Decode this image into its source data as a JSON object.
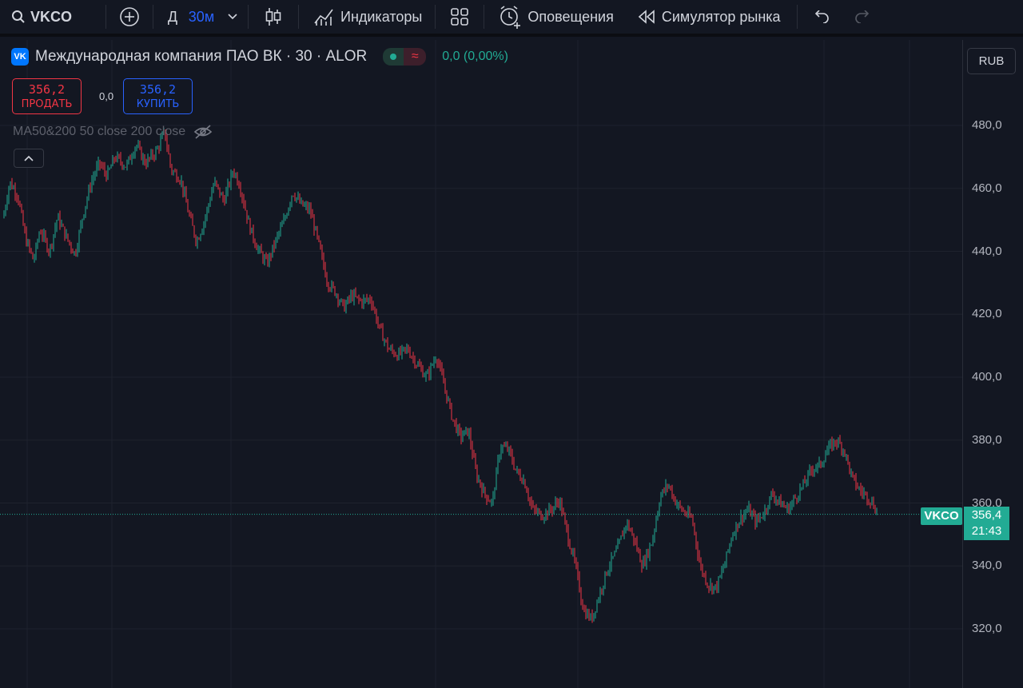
{
  "toolbar": {
    "symbol": "VKCO",
    "interval_prefix": "Д",
    "interval": "30м",
    "indicators_label": "Индикаторы",
    "alerts_label": "Оповещения",
    "replay_label": "Симулятор рынка"
  },
  "legend": {
    "title": "Международная компания ПАО ВК · 30 · ALOR",
    "logo_text": "VK",
    "change": "0,0 (0,00%)",
    "sell_price": "356,2",
    "sell_label": "ПРОДАТЬ",
    "spread": "0,0",
    "buy_price": "356,2",
    "buy_label": "КУПИТЬ",
    "ma_label": "MA50&200 50 close 200 close"
  },
  "price_axis": {
    "currency": "RUB",
    "ticks": [
      "480,0",
      "460,0",
      "440,0",
      "420,0",
      "400,0",
      "380,0",
      "360,0",
      "340,0",
      "320,0"
    ],
    "symbol_tag": "VKCO",
    "last_price": "356,4",
    "countdown": "21:43"
  },
  "colors": {
    "up": "#22ab94",
    "down": "#f23645",
    "background": "#131722",
    "accent": "#2962ff"
  },
  "chart_data": {
    "type": "candlestick",
    "ylim": [
      315,
      495
    ],
    "last": 356.4,
    "anchors": [
      [
        0,
        445
      ],
      [
        12,
        462
      ],
      [
        22,
        458
      ],
      [
        32,
        444
      ],
      [
        42,
        437
      ],
      [
        50,
        447
      ],
      [
        62,
        440
      ],
      [
        72,
        451
      ],
      [
        82,
        445
      ],
      [
        94,
        439
      ],
      [
        104,
        452
      ],
      [
        114,
        462
      ],
      [
        124,
        468
      ],
      [
        134,
        464
      ],
      [
        144,
        470
      ],
      [
        158,
        467
      ],
      [
        170,
        474
      ],
      [
        182,
        468
      ],
      [
        196,
        472
      ],
      [
        206,
        478
      ],
      [
        214,
        466
      ],
      [
        226,
        463
      ],
      [
        236,
        452
      ],
      [
        246,
        443
      ],
      [
        256,
        450
      ],
      [
        268,
        462
      ],
      [
        280,
        456
      ],
      [
        292,
        466
      ],
      [
        300,
        461
      ],
      [
        312,
        448
      ],
      [
        322,
        441
      ],
      [
        334,
        436
      ],
      [
        346,
        444
      ],
      [
        356,
        450
      ],
      [
        366,
        459
      ],
      [
        376,
        455
      ],
      [
        388,
        453
      ],
      [
        398,
        443
      ],
      [
        410,
        430
      ],
      [
        420,
        427
      ],
      [
        430,
        422
      ],
      [
        440,
        426
      ],
      [
        452,
        424
      ],
      [
        464,
        425
      ],
      [
        474,
        416
      ],
      [
        486,
        409
      ],
      [
        498,
        407
      ],
      [
        510,
        409
      ],
      [
        522,
        404
      ],
      [
        534,
        400
      ],
      [
        546,
        407
      ],
      [
        556,
        397
      ],
      [
        566,
        387
      ],
      [
        576,
        381
      ],
      [
        586,
        383
      ],
      [
        596,
        369
      ],
      [
        606,
        363
      ],
      [
        616,
        360
      ],
      [
        626,
        378
      ],
      [
        636,
        377
      ],
      [
        646,
        370
      ],
      [
        656,
        367
      ],
      [
        666,
        358
      ],
      [
        678,
        356
      ],
      [
        690,
        358
      ],
      [
        700,
        361
      ],
      [
        710,
        350
      ],
      [
        720,
        340
      ],
      [
        730,
        326
      ],
      [
        740,
        323
      ],
      [
        750,
        331
      ],
      [
        760,
        339
      ],
      [
        772,
        345
      ],
      [
        784,
        354
      ],
      [
        794,
        348
      ],
      [
        804,
        340
      ],
      [
        816,
        348
      ],
      [
        826,
        362
      ],
      [
        836,
        366
      ],
      [
        846,
        360
      ],
      [
        856,
        357
      ],
      [
        866,
        355
      ],
      [
        876,
        340
      ],
      [
        886,
        334
      ],
      [
        896,
        333
      ],
      [
        906,
        340
      ],
      [
        916,
        350
      ],
      [
        926,
        355
      ],
      [
        936,
        358
      ],
      [
        946,
        354
      ],
      [
        956,
        357
      ],
      [
        966,
        363
      ],
      [
        976,
        360
      ],
      [
        986,
        358
      ],
      [
        996,
        362
      ],
      [
        1006,
        366
      ],
      [
        1016,
        371
      ],
      [
        1026,
        372
      ],
      [
        1036,
        377
      ],
      [
        1046,
        380
      ],
      [
        1056,
        377
      ],
      [
        1066,
        368
      ],
      [
        1076,
        364
      ],
      [
        1086,
        362
      ],
      [
        1094,
        359
      ],
      [
        1098,
        356.4
      ]
    ]
  }
}
